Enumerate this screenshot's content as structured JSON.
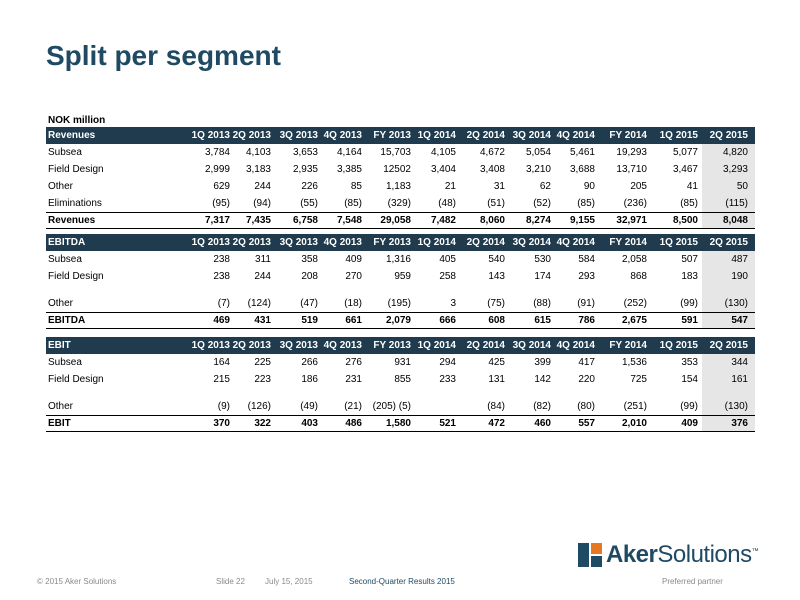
{
  "title": "Split per segment",
  "unit_label": "NOK million",
  "columns": [
    "1Q 2013",
    "2Q 2013",
    "3Q 2013",
    "4Q 2013",
    "FY 2013",
    "1Q 2014",
    "2Q 2014",
    "3Q 2014",
    "4Q 2014",
    "FY 2014",
    "1Q 2015",
    "2Q 2015"
  ],
  "sections": [
    {
      "header": "Revenues",
      "rows": [
        {
          "label": "Subsea",
          "values": [
            "3,784",
            "4,103",
            "3,653",
            "4,164",
            "15,703",
            "4,105",
            "4,672",
            "5,054",
            "5,461",
            "19,293",
            "5,077",
            "4,820"
          ]
        },
        {
          "label": "Field Design",
          "values": [
            "2,999",
            "3,183",
            "2,935",
            "3,385",
            "12502",
            "3,404",
            "3,408",
            "3,210",
            "3,688",
            "13,710",
            "3,467",
            "3,293"
          ]
        },
        {
          "label": "Other",
          "values": [
            "629",
            "244",
            "226",
            "85",
            "1,183",
            "21",
            "31",
            "62",
            "90",
            "205",
            "41",
            "50"
          ]
        },
        {
          "label": "Eliminations",
          "values": [
            "(95)",
            "(94)",
            "(55)",
            "(85)",
            "(329)",
            "(48)",
            "(51)",
            "(52)",
            "(85)",
            "(236)",
            "(85)",
            "(115)"
          ]
        }
      ],
      "total": {
        "label": "Revenues",
        "values": [
          "7,317",
          "7,435",
          "6,758",
          "7,548",
          "29,058",
          "7,482",
          "8,060",
          "8,274",
          "9,155",
          "32,971",
          "8,500",
          "8,048"
        ]
      }
    },
    {
      "header": "EBITDA",
      "rows": [
        {
          "label": "Subsea",
          "values": [
            "238",
            "311",
            "358",
            "409",
            "1,316",
            "405",
            "540",
            "530",
            "584",
            "2,058",
            "507",
            "487"
          ]
        },
        {
          "label": "Field Design",
          "values": [
            "238",
            "244",
            "208",
            "270",
            "959",
            "258",
            "143",
            "174",
            "293",
            "868",
            "183",
            "190"
          ]
        },
        {
          "label": "",
          "values": [
            "",
            "",
            "",
            "",
            "",
            "",
            "",
            "",
            "",
            "",
            "",
            ""
          ]
        },
        {
          "label": "Other",
          "values": [
            "(7)",
            "(124)",
            "(47)",
            "(18)",
            "(195)",
            "3",
            "(75)",
            "(88)",
            "(91)",
            "(252)",
            "(99)",
            "(130)"
          ]
        }
      ],
      "total": {
        "label": "EBITDA",
        "values": [
          "469",
          "431",
          "519",
          "661",
          "2,079",
          "666",
          "608",
          "615",
          "786",
          "2,675",
          "591",
          "547"
        ]
      }
    },
    {
      "header": "EBIT",
      "rows": [
        {
          "label": "Subsea",
          "values": [
            "164",
            "225",
            "266",
            "276",
            "931",
            "294",
            "425",
            "399",
            "417",
            "1,536",
            "353",
            "344"
          ]
        },
        {
          "label": "Field Design",
          "values": [
            "215",
            "223",
            "186",
            "231",
            "855",
            "233",
            "131",
            "142",
            "220",
            "725",
            "154",
            "161"
          ]
        },
        {
          "label": "",
          "values": [
            "",
            "",
            "",
            "",
            "",
            "",
            "",
            "",
            "",
            "",
            "",
            ""
          ]
        },
        {
          "label": "Other",
          "values": [
            "(9)",
            "(126)",
            "(49)",
            "(21)",
            "(205) (5)",
            "",
            "(84)",
            "(82)",
            "(80)",
            "(251)",
            "(99)",
            "(130)"
          ]
        }
      ],
      "total": {
        "label": "EBIT",
        "values": [
          "370",
          "322",
          "403",
          "486",
          "1,580",
          "521",
          "472",
          "460",
          "557",
          "2,010",
          "409",
          "376"
        ]
      }
    }
  ],
  "logo": {
    "word_bold": "Aker",
    "word_light": "Solutions",
    "tm": "™"
  },
  "footer": {
    "copyright": "© 2015 Aker Solutions",
    "slide": "Slide 22",
    "date": "July 15, 2015",
    "presentation": "Second-Quarter Results 2015",
    "tagline": "Preferred partner"
  }
}
